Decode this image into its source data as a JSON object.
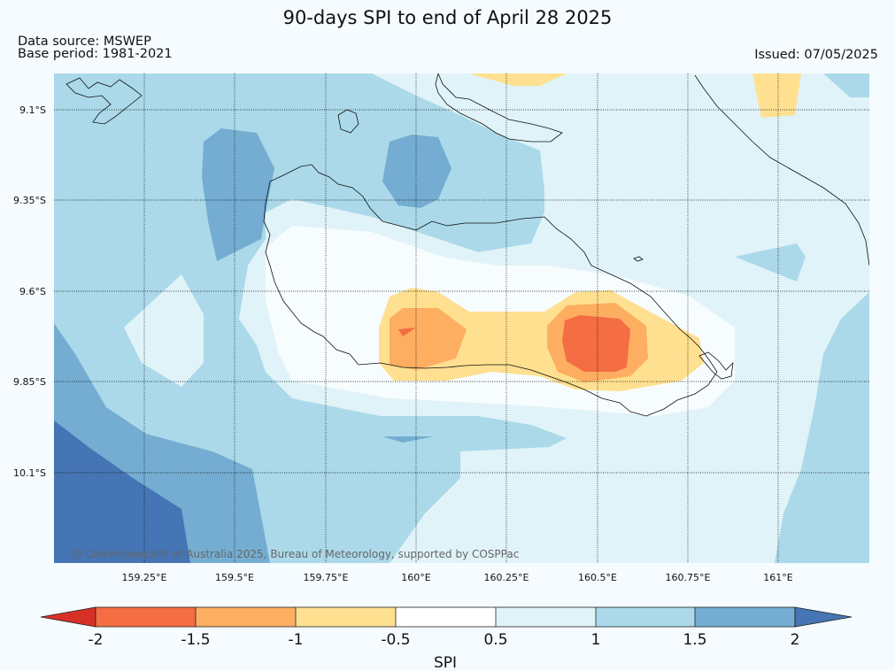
{
  "header": {
    "title": "90-days SPI to end of April 28 2025",
    "source_line": "Data source: MSWEP",
    "base_line": "Base period: 1981-2021",
    "issued_line": "Issued: 07/05/2025"
  },
  "map": {
    "lat_labels": [
      "9.1°S",
      "9.35°S",
      "9.6°S",
      "9.85°S",
      "10.1°S"
    ],
    "lon_labels": [
      "159.25°E",
      "159.5°E",
      "159.75°E",
      "160°E",
      "160.25°E",
      "160.5°E",
      "160.75°E",
      "161°E"
    ],
    "copyright": "© Commonwealth of Australia 2025, Bureau of Meteorology, supported by COSPPac"
  },
  "colorbar": {
    "title": "SPI",
    "ticks": [
      "-2",
      "-1.5",
      "-1",
      "-0.5",
      "0.5",
      "1",
      "1.5",
      "2"
    ],
    "colors": {
      "below_min": "#d73027",
      "c_m2": "#f46d43",
      "c_m15": "#fdae61",
      "c_m1": "#fee090",
      "c_m05": "#ffffff",
      "c_05": "#e0f3f8",
      "c_1": "#abd9e9",
      "c_15": "#74add1",
      "above_max": "#4575b4"
    }
  }
}
